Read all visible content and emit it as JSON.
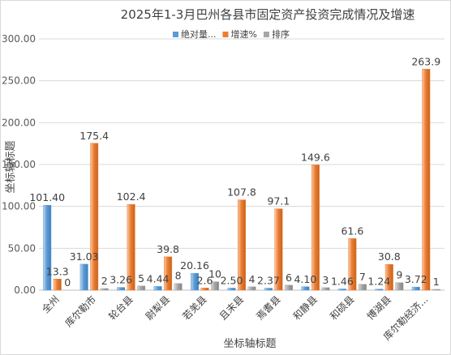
{
  "chart_data": {
    "type": "bar",
    "title": "2025年1-3月巴州各县市固定资产投资完成情况及增速",
    "xlabel": "坐标轴标题",
    "ylabel": "坐标轴标题",
    "ylim": [
      0,
      300
    ],
    "yticks": [
      "0.00",
      "50.00",
      "100.00",
      "150.00",
      "200.00",
      "250.00",
      "300.00"
    ],
    "grid": true,
    "legend_position": "top",
    "categories": [
      "全州",
      "库尔勒市",
      "轮台县",
      "尉犁县",
      "若羌县",
      "且末县",
      "焉耆县",
      "和静县",
      "和硕县",
      "博湖县",
      "库尔勒经济..."
    ],
    "series": [
      {
        "name": "绝对量...",
        "color": "#5b9bd5",
        "values": [
          101.4,
          31.03,
          3.26,
          4.44,
          20.16,
          2.5,
          2.37,
          4.1,
          1.46,
          1.24,
          3.72
        ],
        "labels": [
          "101.40",
          "31.03",
          "3.26",
          "4.44",
          "20.16",
          "2.50",
          "2.37",
          "4.10",
          "1.46",
          "1.24",
          "3.72"
        ]
      },
      {
        "name": "增速%",
        "color": "#ed7d31",
        "values": [
          13.3,
          175.4,
          102.4,
          39.8,
          2.6,
          107.8,
          97.1,
          149.6,
          61.6,
          30.8,
          263.9
        ],
        "labels": [
          "13.3",
          "175.4",
          "102.4",
          "39.8",
          "2.6",
          "107.8",
          "97.1",
          "149.6",
          "61.6",
          "30.8",
          "263.9"
        ]
      },
      {
        "name": "排序",
        "color": "#a5a5a5",
        "values": [
          0,
          2,
          5,
          8,
          10,
          4,
          6,
          3,
          7,
          9,
          1
        ],
        "labels": [
          "0",
          "2",
          "5",
          "8",
          "10",
          "4",
          "6",
          "3",
          "7",
          "9",
          "1"
        ]
      }
    ]
  }
}
